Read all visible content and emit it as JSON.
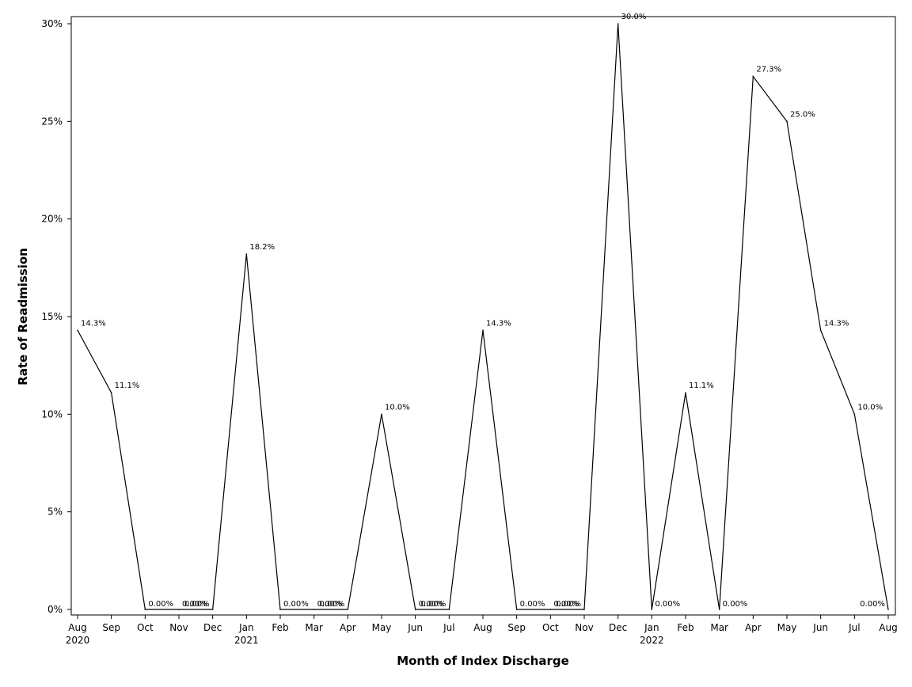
{
  "chart_data": {
    "type": "line",
    "xlabel": "Month of Index Discharge",
    "ylabel": "Rate of Readmission",
    "ylim": [
      0,
      30
    ],
    "y_ticks": [
      {
        "value": 0,
        "label": "0%"
      },
      {
        "value": 5,
        "label": "5%"
      },
      {
        "value": 10,
        "label": "10%"
      },
      {
        "value": 15,
        "label": "15%"
      },
      {
        "value": 20,
        "label": "20%"
      },
      {
        "value": 25,
        "label": "25%"
      },
      {
        "value": 30,
        "label": "30%"
      }
    ],
    "x": [
      "Aug 2020",
      "Sep 2020",
      "Oct 2020",
      "Nov 2020",
      "Dec 2020",
      "Jan 2021",
      "Feb 2021",
      "Mar 2021",
      "Apr 2021",
      "May 2021",
      "Jun 2021",
      "Jul 2021",
      "Aug 2021",
      "Sep 2021",
      "Oct 2021",
      "Nov 2021",
      "Dec 2021",
      "Jan 2022",
      "Feb 2022",
      "Mar 2022",
      "Apr 2022",
      "May 2022",
      "Jun 2022",
      "Jul 2022",
      "Aug 2022"
    ],
    "x_ticks": [
      {
        "label": "Aug",
        "year": "2020"
      },
      {
        "label": "Sep",
        "year": ""
      },
      {
        "label": "Oct",
        "year": ""
      },
      {
        "label": "Nov",
        "year": ""
      },
      {
        "label": "Dec",
        "year": ""
      },
      {
        "label": "Jan",
        "year": "2021"
      },
      {
        "label": "Feb",
        "year": ""
      },
      {
        "label": "Mar",
        "year": ""
      },
      {
        "label": "Apr",
        "year": ""
      },
      {
        "label": "May",
        "year": ""
      },
      {
        "label": "Jun",
        "year": ""
      },
      {
        "label": "Jul",
        "year": ""
      },
      {
        "label": "Aug",
        "year": ""
      },
      {
        "label": "Sep",
        "year": ""
      },
      {
        "label": "Oct",
        "year": ""
      },
      {
        "label": "Nov",
        "year": ""
      },
      {
        "label": "Dec",
        "year": ""
      },
      {
        "label": "Jan",
        "year": "2022"
      },
      {
        "label": "Feb",
        "year": ""
      },
      {
        "label": "Mar",
        "year": ""
      },
      {
        "label": "Apr",
        "year": ""
      },
      {
        "label": "May",
        "year": ""
      },
      {
        "label": "Jun",
        "year": ""
      },
      {
        "label": "Jul",
        "year": ""
      },
      {
        "label": "Aug",
        "year": ""
      }
    ],
    "series": [
      {
        "values": [
          14.3,
          11.1,
          0,
          0,
          0,
          18.2,
          0,
          0,
          0,
          10.0,
          0,
          0,
          14.3,
          0,
          0,
          0,
          30.0,
          0,
          11.1,
          0,
          27.3,
          25.0,
          14.3,
          10.0,
          0
        ],
        "data_labels": [
          "14.3%",
          "11.1%",
          "0.00%",
          "0.00%",
          "0.00%",
          "18.2%",
          "0.00%",
          "0.00%",
          "0.00%",
          "10.0%",
          "0.00%",
          "0.00%",
          "14.3%",
          "0.00%",
          "0.00%",
          "0.00%",
          "30.0%",
          "0.00%",
          "11.1%",
          "0.00%",
          "27.3%",
          "25.0%",
          "14.3%",
          "10.0%",
          "0.00%"
        ],
        "color": "#000000"
      }
    ],
    "grid": false,
    "legend": "none"
  }
}
